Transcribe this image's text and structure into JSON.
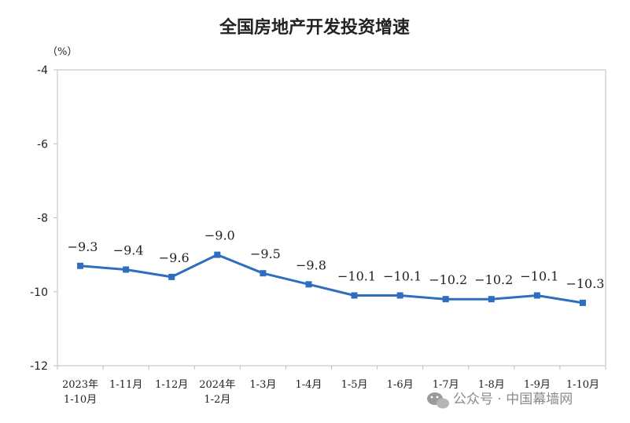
{
  "chart_data": {
    "type": "line",
    "title": "全国房地产开发投资增速",
    "unit": "（%）",
    "categories": [
      [
        "2023年",
        "1-10月"
      ],
      [
        "1-11月"
      ],
      [
        "1-12月"
      ],
      [
        "2024年",
        "1-2月"
      ],
      [
        "1-3月"
      ],
      [
        "1-4月"
      ],
      [
        "1-5月"
      ],
      [
        "1-6月"
      ],
      [
        "1-7月"
      ],
      [
        "1-8月"
      ],
      [
        "1-9月"
      ],
      [
        "1-10月"
      ]
    ],
    "values": [
      -9.3,
      -9.4,
      -9.6,
      -9.0,
      -9.5,
      -9.8,
      -10.1,
      -10.1,
      -10.2,
      -10.2,
      -10.1,
      -10.3
    ],
    "value_labels": [
      "−9.3",
      "−9.4",
      "−9.6",
      "−9.0",
      "−9.5",
      "−9.8",
      "−10.1",
      "−10.1",
      "−10.2",
      "−10.2",
      "−10.1",
      "−10.3"
    ],
    "ylim": [
      -12,
      -4
    ],
    "yticks": [
      -4,
      -6,
      -8,
      -10,
      -12
    ],
    "ytick_labels": [
      "-4",
      "-6",
      "-8",
      "-10",
      "-12"
    ],
    "line_color": "#2e6dbf",
    "grid": false
  },
  "watermark": {
    "icon": "wechat-icon",
    "text": "公众号 · 中国幕墙网"
  }
}
